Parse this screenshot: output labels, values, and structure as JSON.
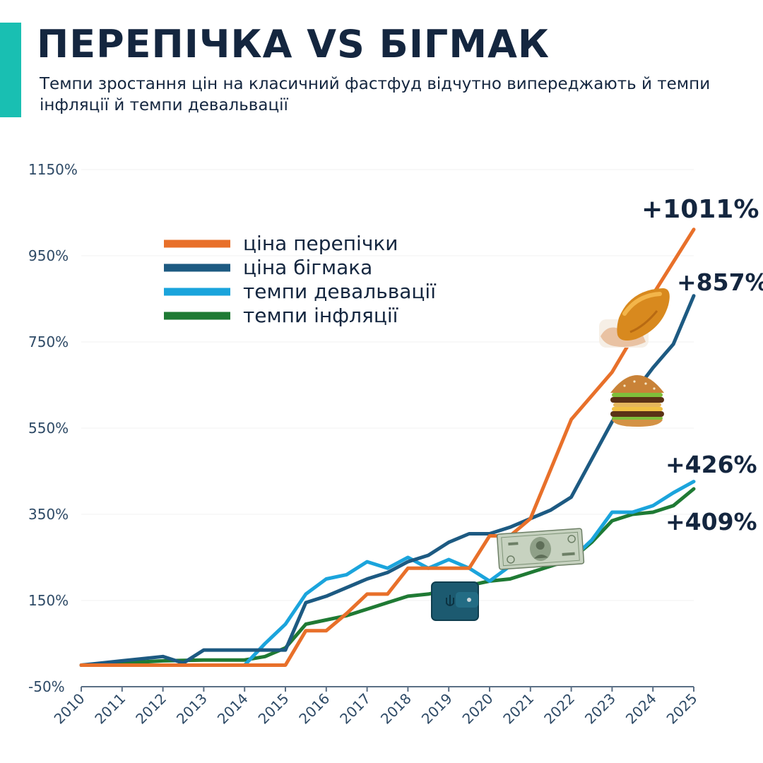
{
  "header": {
    "title": "ПЕРЕПІЧКА VS БІГМАК",
    "subtitle": "Темпи зростання цін на класичний фастфуд відчутно випереджають й темпи інфляції й темпи девальвації"
  },
  "colors": {
    "accent": "#19bfb2",
    "title": "#14263f",
    "perepichka": "#e8702a",
    "bigmac": "#1d5a82",
    "devaluation": "#1ba4dc",
    "inflation": "#1f7a34"
  },
  "icons": [
    "perepichka-photo-icon",
    "burger-photo-icon",
    "dollar-bill-icon",
    "wallet-icon"
  ],
  "chart_data": {
    "type": "line",
    "title": "",
    "xlabel": "",
    "ylabel": "",
    "ylim": [
      -50,
      1150
    ],
    "y_ticks": [
      "1150%",
      "950%",
      "750%",
      "550%",
      "350%",
      "150%",
      "-50%"
    ],
    "y_tick_values": [
      1150,
      950,
      750,
      550,
      350,
      150,
      -50
    ],
    "x_ticks": [
      "2010",
      "2011",
      "2012",
      "2013",
      "2014",
      "2015",
      "2016",
      "2017",
      "2018",
      "2019",
      "2020",
      "2021",
      "2022",
      "2023",
      "2024",
      "2025"
    ],
    "x_tick_values": [
      2010,
      2011,
      2012,
      2013,
      2014,
      2015,
      2016,
      2017,
      2018,
      2019,
      2020,
      2021,
      2022,
      2023,
      2024,
      2025
    ],
    "grid": true,
    "legend_position": "top-left",
    "series": [
      {
        "name": "ціна перепічки",
        "color": "#e8702a",
        "end_label": "+1011%",
        "x": [
          2010,
          2011,
          2012,
          2013,
          2014,
          2015,
          2015.5,
          2016,
          2016.5,
          2017,
          2017.5,
          2018,
          2018.5,
          2019,
          2019.5,
          2020,
          2020.5,
          2021,
          2022,
          2023,
          2023.5,
          2024,
          2025
        ],
        "y": [
          0,
          0,
          0,
          0,
          0,
          0,
          80,
          80,
          120,
          165,
          165,
          225,
          225,
          225,
          225,
          300,
          300,
          340,
          570,
          680,
          760,
          860,
          1011
        ]
      },
      {
        "name": "ціна бігмака",
        "color": "#1d5a82",
        "end_label": "+857%",
        "x": [
          2010,
          2011,
          2012,
          2012.5,
          2013,
          2014,
          2015,
          2015.5,
          2016,
          2017,
          2017.5,
          2018,
          2018.5,
          2019,
          2019.5,
          2020,
          2020.5,
          2021,
          2021.5,
          2022,
          2023,
          2024,
          2024.5,
          2025
        ],
        "y": [
          0,
          10,
          20,
          5,
          35,
          35,
          35,
          145,
          160,
          200,
          215,
          240,
          255,
          285,
          305,
          305,
          320,
          340,
          360,
          390,
          565,
          690,
          745,
          857
        ]
      },
      {
        "name": "темпи девальвації",
        "color": "#1ba4dc",
        "end_label": "+426%",
        "x": [
          2010,
          2011,
          2012,
          2013,
          2014,
          2014.5,
          2015,
          2015.5,
          2016,
          2016.5,
          2017,
          2017.5,
          2018,
          2018.5,
          2019,
          2019.5,
          2020,
          2020.5,
          2021,
          2021.5,
          2022,
          2022.5,
          2023,
          2023.5,
          2024,
          2024.5,
          2025
        ],
        "y": [
          0,
          0,
          0,
          0,
          0,
          50,
          95,
          165,
          200,
          210,
          240,
          225,
          250,
          225,
          245,
          225,
          195,
          230,
          250,
          240,
          245,
          290,
          355,
          355,
          370,
          400,
          426
        ]
      },
      {
        "name": "темпи інфляції",
        "color": "#1f7a34",
        "end_label": "+409%",
        "x": [
          2010,
          2011,
          2012,
          2013,
          2014,
          2014.5,
          2015,
          2015.5,
          2016,
          2016.5,
          2017,
          2017.5,
          2018,
          2018.5,
          2019,
          2019.5,
          2020,
          2020.5,
          2021,
          2021.5,
          2022,
          2022.5,
          2023,
          2023.5,
          2024,
          2024.5,
          2025
        ],
        "y": [
          0,
          5,
          10,
          12,
          12,
          20,
          40,
          95,
          105,
          115,
          130,
          145,
          160,
          165,
          175,
          185,
          195,
          200,
          215,
          230,
          245,
          285,
          335,
          350,
          355,
          370,
          409
        ]
      }
    ]
  }
}
